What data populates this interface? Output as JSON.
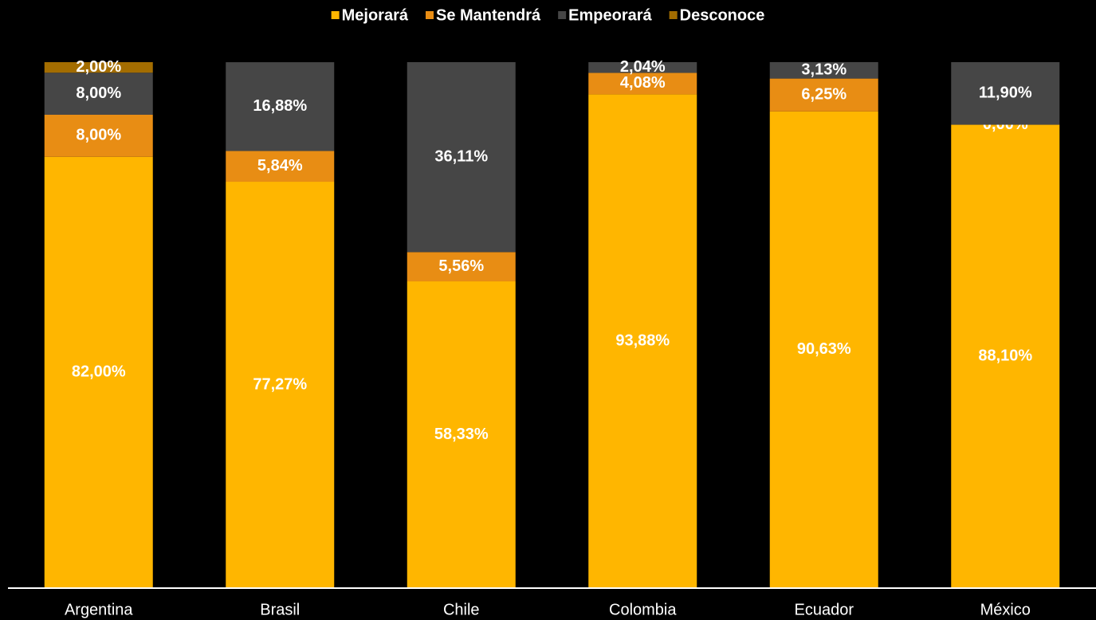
{
  "chart_data": {
    "type": "stacked_bar",
    "categories": [
      "Argentina",
      "Brasil",
      "Chile",
      "Colombia",
      "Ecuador",
      "México"
    ],
    "ylim": [
      0,
      100
    ],
    "series": [
      {
        "name": "Mejorará",
        "color": "#FFB600",
        "values": [
          82.0,
          77.27,
          58.33,
          93.88,
          90.63,
          88.1
        ],
        "value_labels": [
          "82,00%",
          "77,27%",
          "58,33%",
          "93,88%",
          "90,63%",
          "88,10%"
        ]
      },
      {
        "name": "Se Mantendrá",
        "color": "#E88D14",
        "values": [
          8.0,
          5.84,
          5.56,
          4.08,
          6.25,
          0.0
        ],
        "value_labels": [
          "8,00%",
          "5,84%",
          "5,56%",
          "4,08%",
          "6,25%",
          "0,00%"
        ]
      },
      {
        "name": "Empeorará",
        "color": "#464646",
        "values": [
          8.0,
          16.88,
          36.11,
          2.04,
          3.13,
          11.9
        ],
        "value_labels": [
          "8,00%",
          "16,88%",
          "36,11%",
          "2,04%",
          "3,13%",
          "11,90%"
        ]
      },
      {
        "name": "Desconoce",
        "color": "#A36D00",
        "values": [
          2.0,
          0,
          0,
          0,
          0,
          0
        ],
        "value_labels": [
          "2,00%",
          null,
          null,
          null,
          null,
          null
        ]
      }
    ]
  }
}
